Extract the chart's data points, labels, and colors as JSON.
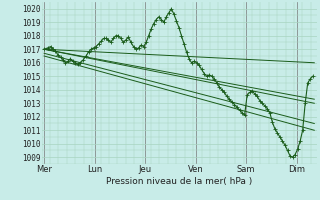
{
  "bg_color": "#c8ece8",
  "grid_color": "#a8d4c0",
  "line_color": "#1a5c1a",
  "xlabel": "Pression niveau de la mer( hPa )",
  "ylim_min": 1008.5,
  "ylim_max": 1020.5,
  "ytick_vals": [
    1009,
    1010,
    1011,
    1012,
    1013,
    1014,
    1015,
    1016,
    1017,
    1018,
    1019,
    1020
  ],
  "day_labels": [
    "Mer",
    "Lun",
    "Jeu",
    "Ven",
    "Sam",
    "Dim"
  ],
  "day_x": [
    0,
    1,
    2,
    3,
    4,
    5
  ],
  "xlim_min": -0.05,
  "xlim_max": 5.4,
  "straight_lines": [
    {
      "x0": 0.0,
      "y0": 1017.0,
      "x1": 5.35,
      "y1": 1016.0
    },
    {
      "x0": 0.0,
      "y0": 1017.0,
      "x1": 5.35,
      "y1": 1013.3
    },
    {
      "x0": 0.0,
      "y0": 1017.0,
      "x1": 5.35,
      "y1": 1013.0
    },
    {
      "x0": 0.0,
      "y0": 1016.7,
      "x1": 5.35,
      "y1": 1011.5
    },
    {
      "x0": 0.0,
      "y0": 1016.5,
      "x1": 5.35,
      "y1": 1011.0
    }
  ],
  "main_curve_x": [
    0.0,
    0.07,
    0.13,
    0.18,
    0.22,
    0.27,
    0.33,
    0.38,
    0.42,
    0.47,
    0.52,
    0.57,
    0.62,
    0.67,
    0.72,
    0.77,
    0.83,
    0.88,
    0.93,
    0.98,
    1.03,
    1.08,
    1.13,
    1.18,
    1.22,
    1.27,
    1.32,
    1.37,
    1.42,
    1.47,
    1.52,
    1.57,
    1.62,
    1.67,
    1.72,
    1.77,
    1.82,
    1.87,
    1.92,
    1.97,
    2.02,
    2.07,
    2.12,
    2.17,
    2.22,
    2.27,
    2.32,
    2.37,
    2.42,
    2.47,
    2.52,
    2.57,
    2.62,
    2.67,
    2.72,
    2.77,
    2.82,
    2.87,
    2.92,
    2.97,
    3.02,
    3.07,
    3.12,
    3.17,
    3.22,
    3.27,
    3.32,
    3.37,
    3.42,
    3.47,
    3.52,
    3.57,
    3.62,
    3.67,
    3.72,
    3.77,
    3.82,
    3.87,
    3.92,
    3.97,
    4.02,
    4.07,
    4.12,
    4.17,
    4.22,
    4.27,
    4.32,
    4.37,
    4.42,
    4.47,
    4.52,
    4.57,
    4.62,
    4.67,
    4.72,
    4.77,
    4.82,
    4.87,
    4.92,
    4.97,
    5.02,
    5.07,
    5.12,
    5.17,
    5.22,
    5.27,
    5.32
  ],
  "main_curve_y": [
    1017.0,
    1017.1,
    1017.2,
    1017.0,
    1016.9,
    1016.6,
    1016.4,
    1016.2,
    1016.0,
    1016.1,
    1016.3,
    1016.1,
    1016.0,
    1015.9,
    1016.0,
    1016.2,
    1016.5,
    1016.8,
    1017.0,
    1017.1,
    1017.2,
    1017.4,
    1017.6,
    1017.8,
    1017.8,
    1017.7,
    1017.5,
    1017.8,
    1018.0,
    1018.0,
    1017.8,
    1017.5,
    1017.7,
    1017.9,
    1017.5,
    1017.2,
    1017.0,
    1017.1,
    1017.3,
    1017.2,
    1017.5,
    1018.0,
    1018.5,
    1018.9,
    1019.2,
    1019.4,
    1019.2,
    1019.0,
    1019.4,
    1019.7,
    1020.0,
    1019.6,
    1019.1,
    1018.6,
    1018.0,
    1017.4,
    1016.8,
    1016.3,
    1016.0,
    1016.1,
    1016.0,
    1015.8,
    1015.5,
    1015.2,
    1015.0,
    1015.1,
    1015.0,
    1014.8,
    1014.5,
    1014.2,
    1014.0,
    1013.8,
    1013.5,
    1013.3,
    1013.1,
    1012.9,
    1012.7,
    1012.5,
    1012.3,
    1012.1,
    1013.6,
    1013.8,
    1013.9,
    1013.7,
    1013.5,
    1013.2,
    1013.0,
    1012.8,
    1012.6,
    1012.3,
    1011.6,
    1011.1,
    1010.8,
    1010.5,
    1010.2,
    1009.9,
    1009.5,
    1009.1,
    1009.0,
    1009.2,
    1009.6,
    1010.2,
    1011.0,
    1013.0,
    1014.5,
    1014.8,
    1015.0
  ]
}
